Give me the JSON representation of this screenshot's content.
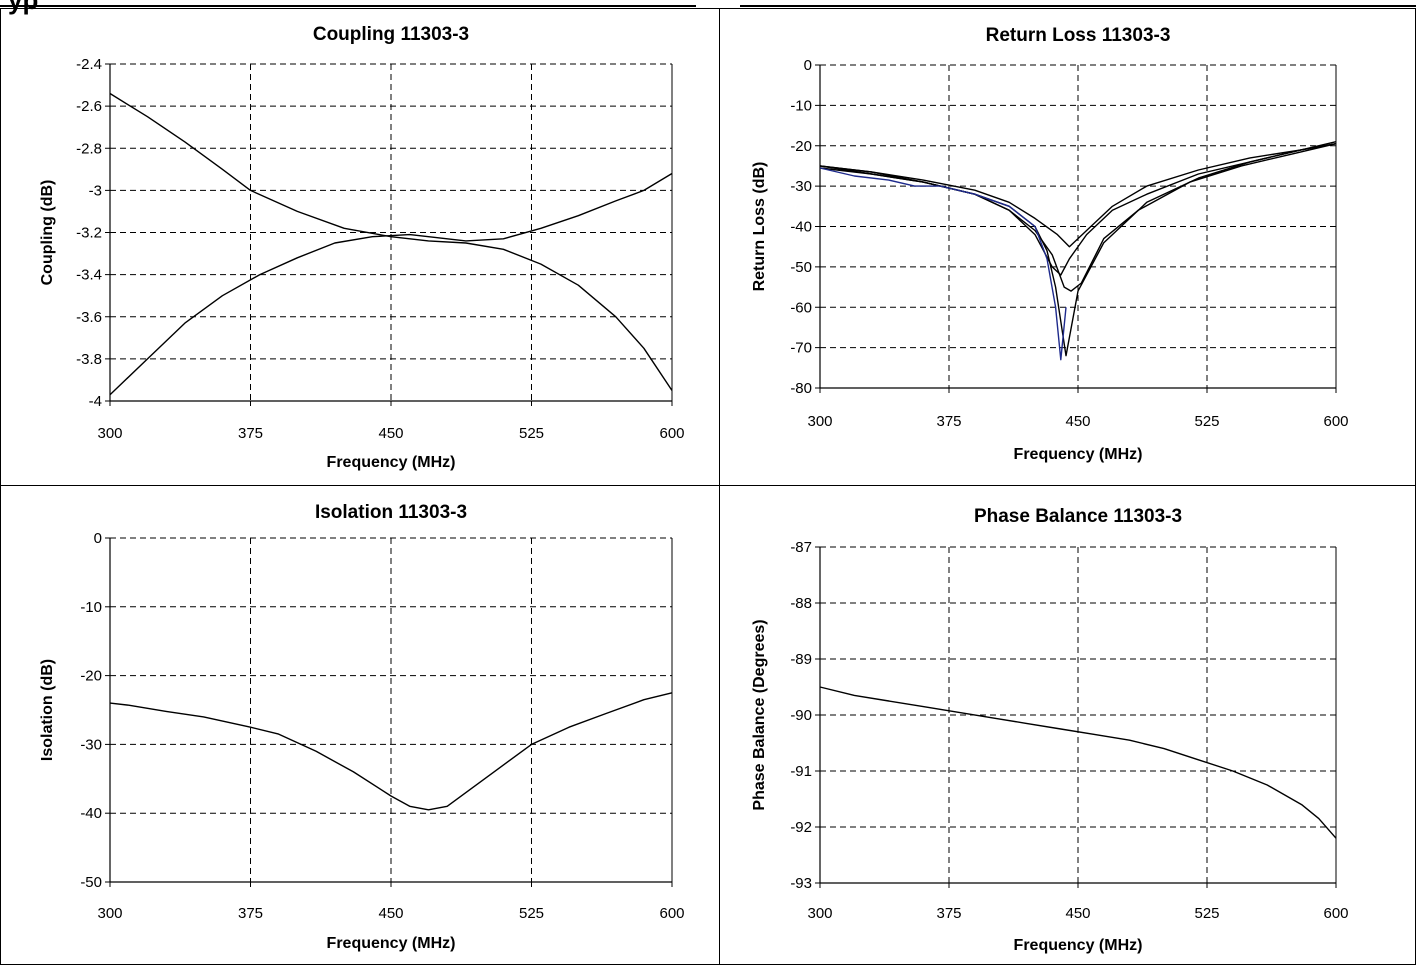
{
  "page": {
    "header_text": "yp"
  },
  "charts": [
    {
      "id": "coupling",
      "type": "line",
      "title": "Coupling 11303-3",
      "xlabel": "Frequency (MHz)",
      "ylabel": "Coupling (dB)",
      "xlim": [
        300,
        600
      ],
      "ylim": [
        -4,
        -2.4
      ],
      "xticks": [
        300,
        375,
        450,
        525,
        600
      ],
      "xtick_labels": [
        "300",
        "375",
        "450",
        "525",
        "600"
      ],
      "yticks": [
        -2.4,
        -2.6,
        -2.8,
        -3,
        -3.2,
        -3.4,
        -3.6,
        -3.8,
        -4
      ],
      "ytick_labels": [
        "-2.4",
        "-2.6",
        "-2.8",
        "-3",
        "-3.2",
        "-3.4",
        "-3.6",
        "-3.8",
        "-4"
      ],
      "grid": true,
      "series": [
        {
          "color": "#000000",
          "x": [
            300,
            320,
            340,
            360,
            375,
            400,
            425,
            450,
            470,
            490,
            510,
            530,
            550,
            570,
            585,
            600
          ],
          "y": [
            -2.54,
            -2.65,
            -2.77,
            -2.9,
            -3.0,
            -3.1,
            -3.18,
            -3.22,
            -3.24,
            -3.25,
            -3.28,
            -3.35,
            -3.45,
            -3.6,
            -3.75,
            -3.95
          ]
        },
        {
          "color": "#000000",
          "x": [
            300,
            320,
            340,
            360,
            380,
            400,
            420,
            440,
            460,
            470,
            490,
            510,
            530,
            550,
            570,
            585,
            600
          ],
          "y": [
            -3.97,
            -3.8,
            -3.63,
            -3.5,
            -3.4,
            -3.32,
            -3.25,
            -3.22,
            -3.21,
            -3.22,
            -3.24,
            -3.23,
            -3.18,
            -3.12,
            -3.05,
            -3.0,
            -2.92
          ]
        }
      ]
    },
    {
      "id": "return-loss",
      "type": "line",
      "title": "Return Loss 11303-3",
      "xlabel": "Frequency (MHz)",
      "ylabel": "Return Loss (dB)",
      "xlim": [
        300,
        600
      ],
      "ylim": [
        -80,
        0
      ],
      "xticks": [
        300,
        375,
        450,
        525,
        600
      ],
      "xtick_labels": [
        "300",
        "375",
        "450",
        "525",
        "600"
      ],
      "yticks": [
        0,
        -10,
        -20,
        -30,
        -40,
        -50,
        -60,
        -70,
        -80
      ],
      "ytick_labels": [
        "0",
        "-10",
        "-20",
        "-30",
        "-40",
        "-50",
        "-60",
        "-70",
        "-80"
      ],
      "grid": true,
      "series": [
        {
          "color": "#000000",
          "x": [
            300,
            330,
            360,
            390,
            410,
            425,
            438,
            445,
            455,
            470,
            490,
            520,
            550,
            580,
            600
          ],
          "y": [
            -25,
            -26.5,
            -28.5,
            -31,
            -34,
            -38,
            -42,
            -45,
            -41,
            -35,
            -30,
            -26,
            -23,
            -21,
            -19.5
          ]
        },
        {
          "color": "#000000",
          "x": [
            300,
            330,
            360,
            390,
            410,
            425,
            435,
            440,
            445,
            455,
            470,
            490,
            520,
            550,
            580,
            600
          ],
          "y": [
            -25.5,
            -27,
            -29,
            -32,
            -36,
            -42,
            -50,
            -52,
            -48,
            -42,
            -36,
            -32,
            -27,
            -24,
            -21,
            -19.5
          ]
        },
        {
          "color": "#000000",
          "x": [
            300,
            330,
            360,
            390,
            410,
            425,
            435,
            442,
            446,
            452,
            465,
            485,
            515,
            545,
            575,
            600
          ],
          "y": [
            -25,
            -26.5,
            -29,
            -32,
            -36,
            -41,
            -47,
            -55,
            -56,
            -54,
            -43,
            -36,
            -29,
            -25,
            -22,
            -19.5
          ]
        },
        {
          "color": "#000000",
          "x": [
            300,
            330,
            360,
            390,
            410,
            425,
            432,
            437,
            443,
            450,
            465,
            490,
            520,
            550,
            580,
            600
          ],
          "y": [
            -25,
            -27,
            -29,
            -32,
            -35,
            -40,
            -46,
            -55,
            -72,
            -56,
            -44,
            -34,
            -28,
            -24,
            -21,
            -19
          ]
        },
        {
          "color": "#1e2a8c",
          "x": [
            300,
            320,
            340,
            355,
            370,
            390,
            410,
            425,
            432,
            437,
            440,
            443
          ],
          "y": [
            -25.5,
            -27.5,
            -28.5,
            -30,
            -30,
            -32,
            -35,
            -40,
            -48,
            -60,
            -73,
            -60
          ]
        }
      ]
    },
    {
      "id": "isolation",
      "type": "line",
      "title": "Isolation 11303-3",
      "xlabel": "Frequency (MHz)",
      "ylabel": "Isolation (dB)",
      "xlim": [
        300,
        600
      ],
      "ylim": [
        -50,
        0
      ],
      "xticks": [
        300,
        375,
        450,
        525,
        600
      ],
      "xtick_labels": [
        "300",
        "375",
        "450",
        "525",
        "600"
      ],
      "yticks": [
        0,
        -10,
        -20,
        -30,
        -40,
        -50
      ],
      "ytick_labels": [
        "0",
        "-10",
        "-20",
        "-30",
        "-40",
        "-50"
      ],
      "grid": true,
      "series": [
        {
          "color": "#000000",
          "x": [
            300,
            310,
            330,
            350,
            375,
            390,
            410,
            430,
            450,
            460,
            470,
            480,
            490,
            505,
            525,
            545,
            565,
            585,
            600
          ],
          "y": [
            -24,
            -24.3,
            -25.2,
            -26,
            -27.5,
            -28.5,
            -31,
            -34,
            -37.5,
            -39,
            -39.5,
            -39,
            -37,
            -34,
            -30,
            -27.5,
            -25.5,
            -23.5,
            -22.5
          ]
        }
      ]
    },
    {
      "id": "phase-balance",
      "type": "line",
      "title": "Phase Balance 11303-3",
      "xlabel": "Frequency (MHz)",
      "ylabel": "Phase Balance (Degrees)",
      "xlim": [
        300,
        600
      ],
      "ylim": [
        -93,
        -87
      ],
      "xticks": [
        300,
        375,
        450,
        525,
        600
      ],
      "xtick_labels": [
        "300",
        "375",
        "450",
        "525",
        "600"
      ],
      "yticks": [
        -87,
        -88,
        -89,
        -90,
        -91,
        -92,
        -93
      ],
      "ytick_labels": [
        "-87",
        "-88",
        "-89",
        "-90",
        "-91",
        "-92",
        "-93"
      ],
      "grid": true,
      "series": [
        {
          "color": "#000000",
          "x": [
            300,
            320,
            340,
            360,
            380,
            400,
            420,
            440,
            460,
            480,
            500,
            520,
            540,
            560,
            580,
            590,
            600
          ],
          "y": [
            -89.5,
            -89.65,
            -89.75,
            -89.85,
            -89.95,
            -90.05,
            -90.15,
            -90.25,
            -90.35,
            -90.45,
            -90.6,
            -90.8,
            -91.0,
            -91.25,
            -91.6,
            -91.85,
            -92.2
          ]
        }
      ]
    }
  ]
}
